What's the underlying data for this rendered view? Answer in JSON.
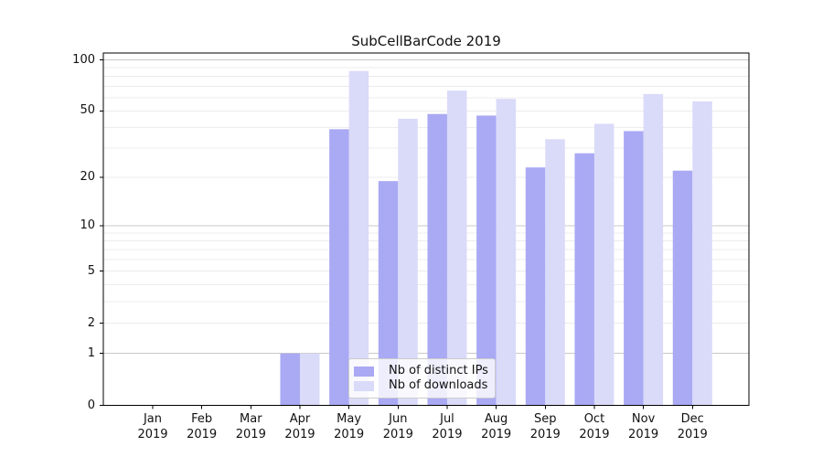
{
  "chart_data": {
    "type": "bar",
    "title": "SubCellBarCode 2019",
    "categories": [
      "Jan 2019",
      "Feb 2019",
      "Mar 2019",
      "Apr 2019",
      "May 2019",
      "Jun 2019",
      "Jul 2019",
      "Aug 2019",
      "Sep 2019",
      "Oct 2019",
      "Nov 2019",
      "Dec 2019"
    ],
    "series": [
      {
        "name": "Nb of distinct IPs",
        "color": "#a9a9f4",
        "values": [
          0,
          0,
          0,
          1,
          39,
          19,
          48,
          47,
          23,
          28,
          38,
          22
        ]
      },
      {
        "name": "Nb of downloads",
        "color": "#dadaf9",
        "values": [
          0,
          0,
          0,
          1,
          86,
          45,
          66,
          59,
          34,
          42,
          63,
          57
        ]
      }
    ],
    "y_ticks": [
      0,
      1,
      2,
      5,
      10,
      20,
      50,
      100
    ],
    "gridlines": {
      "decade": [
        1,
        10,
        100
      ],
      "minor": [
        2,
        3,
        4,
        5,
        6,
        7,
        8,
        9,
        20,
        30,
        40,
        50,
        60,
        70,
        80,
        90
      ]
    },
    "scale": "log1p",
    "ylim": [
      0,
      100
    ],
    "xlabel": "",
    "ylabel": "",
    "grid": "both",
    "legend_position": "lower center",
    "colors": {
      "axis": "#000000",
      "grid_decade": "#c9c9c9",
      "grid_minor": "#ececec",
      "background": "#ffffff"
    }
  }
}
